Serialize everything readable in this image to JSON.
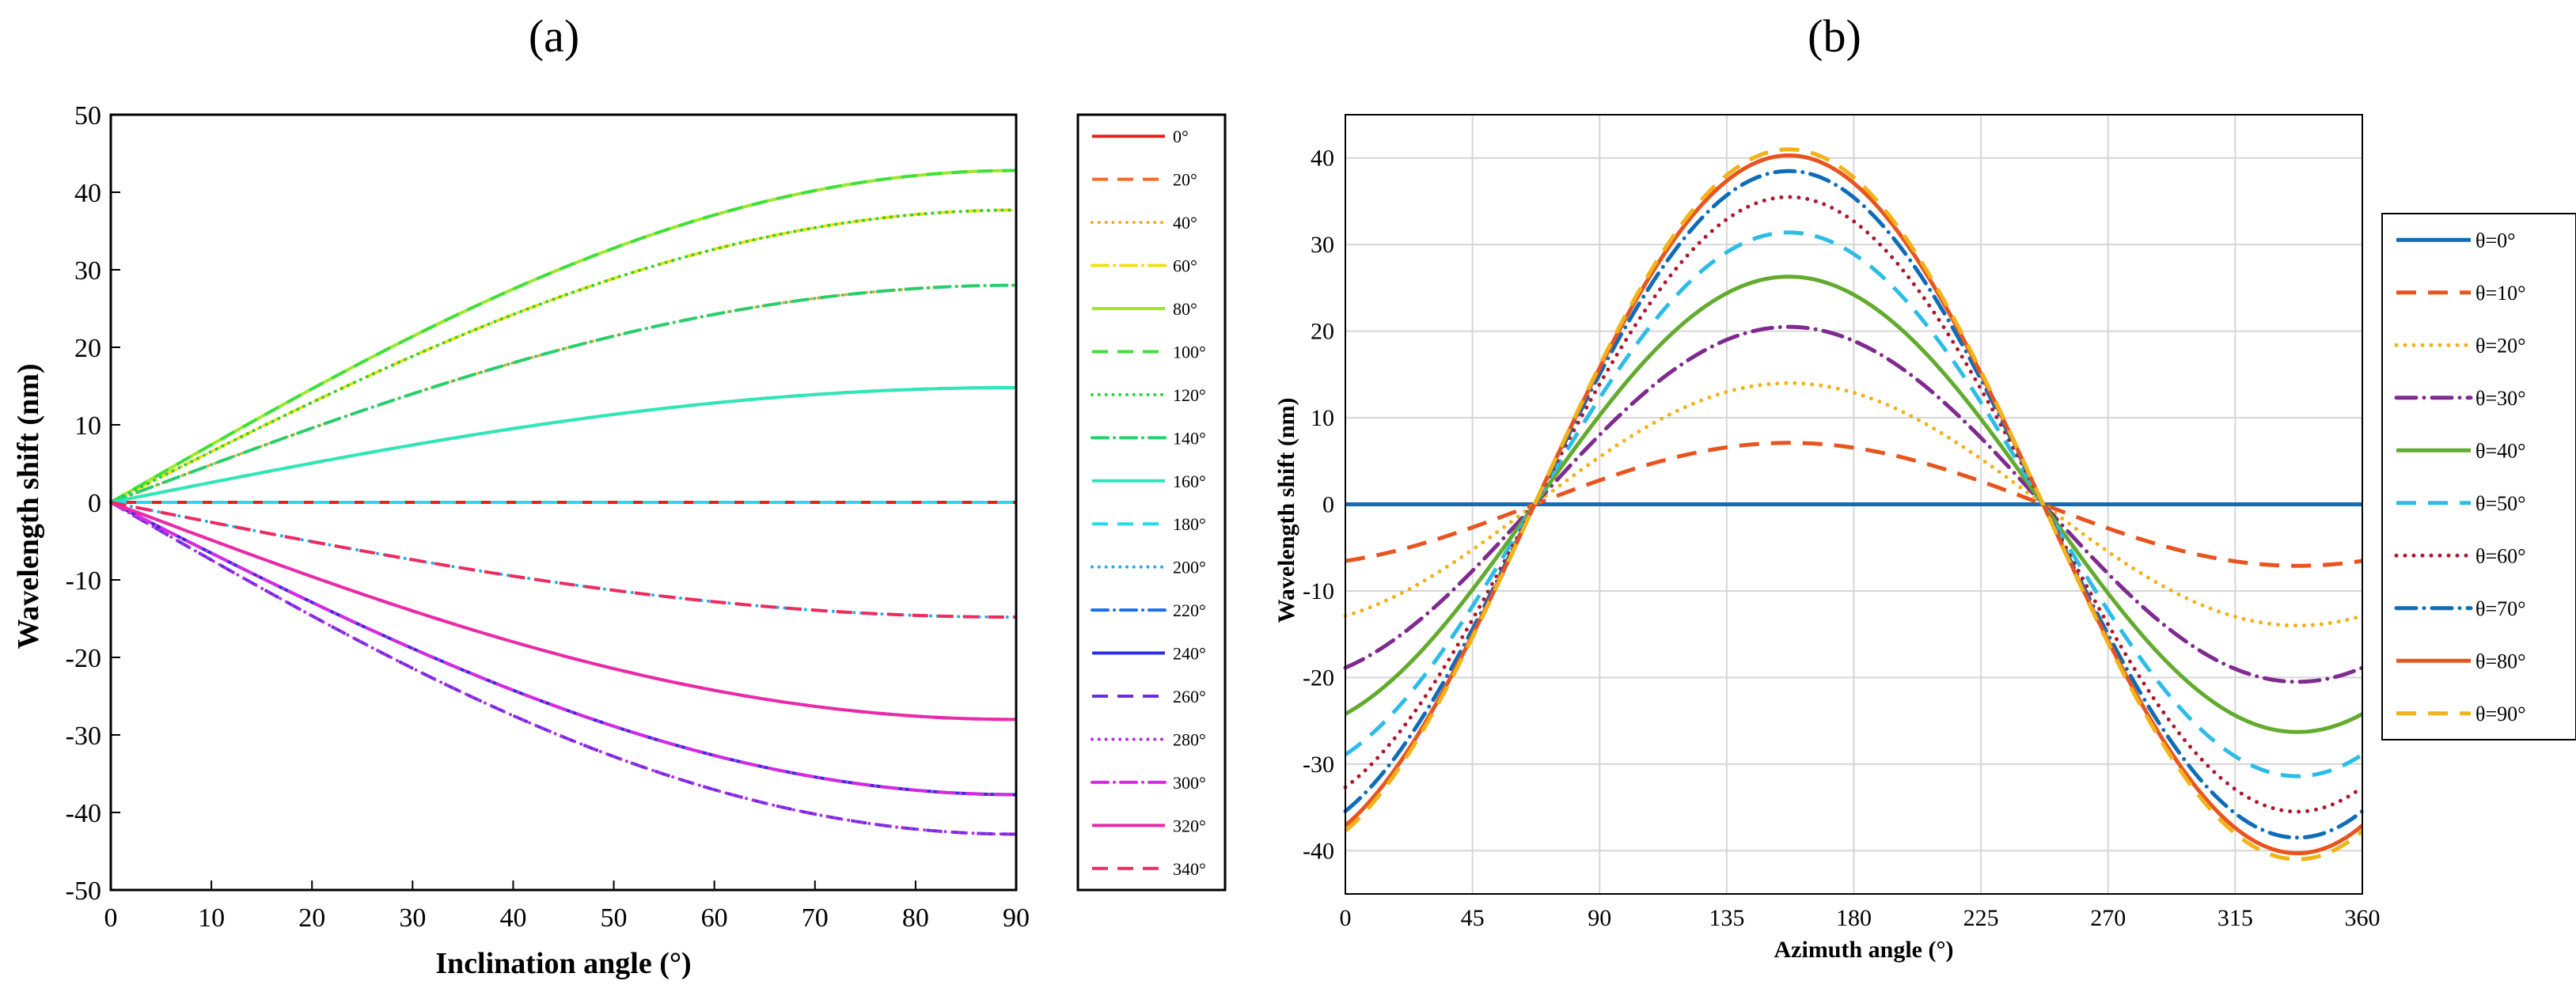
{
  "chart_data": [
    {
      "panel": "(a)",
      "type": "line",
      "xlabel": "Inclination angle (°)",
      "ylabel": "Wavelength shift (nm)",
      "xlim": [
        0,
        90
      ],
      "ylim": [
        -50,
        50
      ],
      "xticks": [
        0,
        10,
        20,
        30,
        40,
        50,
        60,
        70,
        80,
        90
      ],
      "yticks": [
        -50,
        -40,
        -30,
        -20,
        -10,
        0,
        10,
        20,
        30,
        40,
        50
      ],
      "grid": false,
      "legend_position": "outside-right",
      "model": "shift = amplitude * sin(inclination); curves sampled at inclination 0 and 90",
      "series": [
        {
          "name": "0°",
          "amplitude": 0,
          "color": "#e8201c",
          "style": "solid"
        },
        {
          "name": "20°",
          "amplitude": 14.8,
          "color": "#f26a2a",
          "style": "dash"
        },
        {
          "name": "40°",
          "amplitude": 28,
          "color": "#f5a623",
          "style": "dot"
        },
        {
          "name": "60°",
          "amplitude": 37.7,
          "color": "#f0e010",
          "style": "dashdot"
        },
        {
          "name": "80°",
          "amplitude": 42.8,
          "color": "#9de82a",
          "style": "solid"
        },
        {
          "name": "100°",
          "amplitude": 42.8,
          "color": "#3ee03a",
          "style": "dash"
        },
        {
          "name": "120°",
          "amplitude": 37.7,
          "color": "#28d23c",
          "style": "dot"
        },
        {
          "name": "140°",
          "amplitude": 28,
          "color": "#27cf6c",
          "style": "dashdot"
        },
        {
          "name": "160°",
          "amplitude": 14.8,
          "color": "#2ae8b8",
          "style": "solid"
        },
        {
          "name": "180°",
          "amplitude": 0,
          "color": "#28d8e8",
          "style": "dash"
        },
        {
          "name": "200°",
          "amplitude": -14.8,
          "color": "#1fa8f0",
          "style": "dot"
        },
        {
          "name": "220°",
          "amplitude": -28,
          "color": "#1b6fe8",
          "style": "dashdot"
        },
        {
          "name": "240°",
          "amplitude": -37.7,
          "color": "#2a2ee0",
          "style": "solid"
        },
        {
          "name": "260°",
          "amplitude": -42.8,
          "color": "#6a2ee0",
          "style": "dash"
        },
        {
          "name": "280°",
          "amplitude": -42.8,
          "color": "#b02ae8",
          "style": "dot"
        },
        {
          "name": "300°",
          "amplitude": -37.7,
          "color": "#d62ae0",
          "style": "dashdot"
        },
        {
          "name": "320°",
          "amplitude": -28,
          "color": "#ec2aa8",
          "style": "solid"
        },
        {
          "name": "340°",
          "amplitude": -14.8,
          "color": "#ee2a5e",
          "style": "dash"
        }
      ]
    },
    {
      "panel": "(b)",
      "type": "line",
      "xlabel": "Azimuth angle (°)",
      "ylabel": "Wavelength shift (nm)",
      "xlim": [
        0,
        360
      ],
      "ylim": [
        -45,
        45
      ],
      "xticks": [
        0,
        45,
        90,
        135,
        180,
        225,
        270,
        315,
        360
      ],
      "yticks": [
        -40,
        -30,
        -20,
        -10,
        0,
        10,
        20,
        30,
        40
      ],
      "grid": true,
      "legend_position": "outside-right",
      "model": "shift = peak * cos(azimuth - peak_azimuth)",
      "peak_azimuth": 157,
      "series": [
        {
          "name": "θ=0°",
          "peak": 0,
          "color": "#0f6cb8",
          "style": "solid"
        },
        {
          "name": "θ=10°",
          "peak": 7.1,
          "color": "#e8541e",
          "style": "dash"
        },
        {
          "name": "θ=20°",
          "peak": 14,
          "color": "#f2b218",
          "style": "dot"
        },
        {
          "name": "θ=30°",
          "peak": 20.5,
          "color": "#7e2a8e",
          "style": "dashdot"
        },
        {
          "name": "θ=40°",
          "peak": 26.3,
          "color": "#63ab2e",
          "style": "solid"
        },
        {
          "name": "θ=50°",
          "peak": 31.4,
          "color": "#2bbde8",
          "style": "dash"
        },
        {
          "name": "θ=60°",
          "peak": 35.5,
          "color": "#b0162c",
          "style": "dot"
        },
        {
          "name": "θ=70°",
          "peak": 38.5,
          "color": "#0f6cb8",
          "style": "dashdot"
        },
        {
          "name": "θ=80°",
          "peak": 40.3,
          "color": "#e8541e",
          "style": "solid"
        },
        {
          "name": "θ=90°",
          "peak": 41,
          "color": "#f2b218",
          "style": "dash"
        }
      ]
    }
  ]
}
